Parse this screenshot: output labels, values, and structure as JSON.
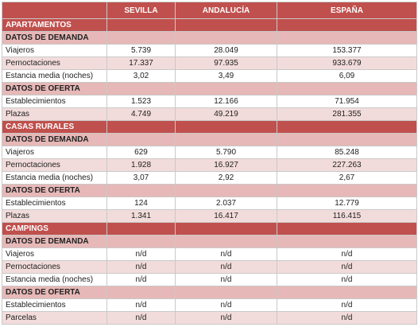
{
  "header": {
    "columns": [
      "SEVILLA",
      "ANDALUCÍA",
      "ESPAÑA"
    ]
  },
  "sections": [
    {
      "title": "APARTAMENTOS",
      "groups": [
        {
          "title": "DATOS DE DEMANDA",
          "rows": [
            {
              "label": "Viajeros",
              "values": [
                "5.739",
                "28.049",
                "153.377"
              ]
            },
            {
              "label": "Pernoctaciones",
              "values": [
                "17.337",
                "97.935",
                "933.679"
              ]
            },
            {
              "label": "Estancia media (noches)",
              "values": [
                "3,02",
                "3,49",
                "6,09"
              ]
            }
          ]
        },
        {
          "title": "DATOS DE OFERTA",
          "rows": [
            {
              "label": "Establecimientos",
              "values": [
                "1.523",
                "12.166",
                "71.954"
              ]
            },
            {
              "label": "Plazas",
              "values": [
                "4.749",
                "49.219",
                "281.355"
              ]
            }
          ]
        }
      ]
    },
    {
      "title": "CASAS RURALES",
      "groups": [
        {
          "title": "DATOS DE DEMANDA",
          "rows": [
            {
              "label": "Viajeros",
              "values": [
                "629",
                "5.790",
                "85.248"
              ]
            },
            {
              "label": "Pernoctaciones",
              "values": [
                "1.928",
                "16.927",
                "227.263"
              ]
            },
            {
              "label": "Estancia media (noches)",
              "values": [
                "3,07",
                "2,92",
                "2,67"
              ]
            }
          ]
        },
        {
          "title": "DATOS DE OFERTA",
          "rows": [
            {
              "label": "Establecimientos",
              "values": [
                "124",
                "2.037",
                "12.779"
              ]
            },
            {
              "label": "Plazas",
              "values": [
                "1.341",
                "16.417",
                "116.415"
              ]
            }
          ]
        }
      ]
    },
    {
      "title": "CAMPINGS",
      "groups": [
        {
          "title": "DATOS DE DEMANDA",
          "rows": [
            {
              "label": "Viajeros",
              "values": [
                "n/d",
                "n/d",
                "n/d"
              ]
            },
            {
              "label": "Pernoctaciones",
              "values": [
                "n/d",
                "n/d",
                "n/d"
              ]
            },
            {
              "label": "Estancia media (noches)",
              "values": [
                "n/d",
                "n/d",
                "n/d"
              ]
            }
          ]
        },
        {
          "title": "DATOS DE OFERTA",
          "rows": [
            {
              "label": "Establecimientos",
              "values": [
                "n/d",
                "n/d",
                "n/d"
              ]
            },
            {
              "label": "Parcelas",
              "values": [
                "n/d",
                "n/d",
                "n/d"
              ]
            }
          ]
        }
      ]
    }
  ]
}
